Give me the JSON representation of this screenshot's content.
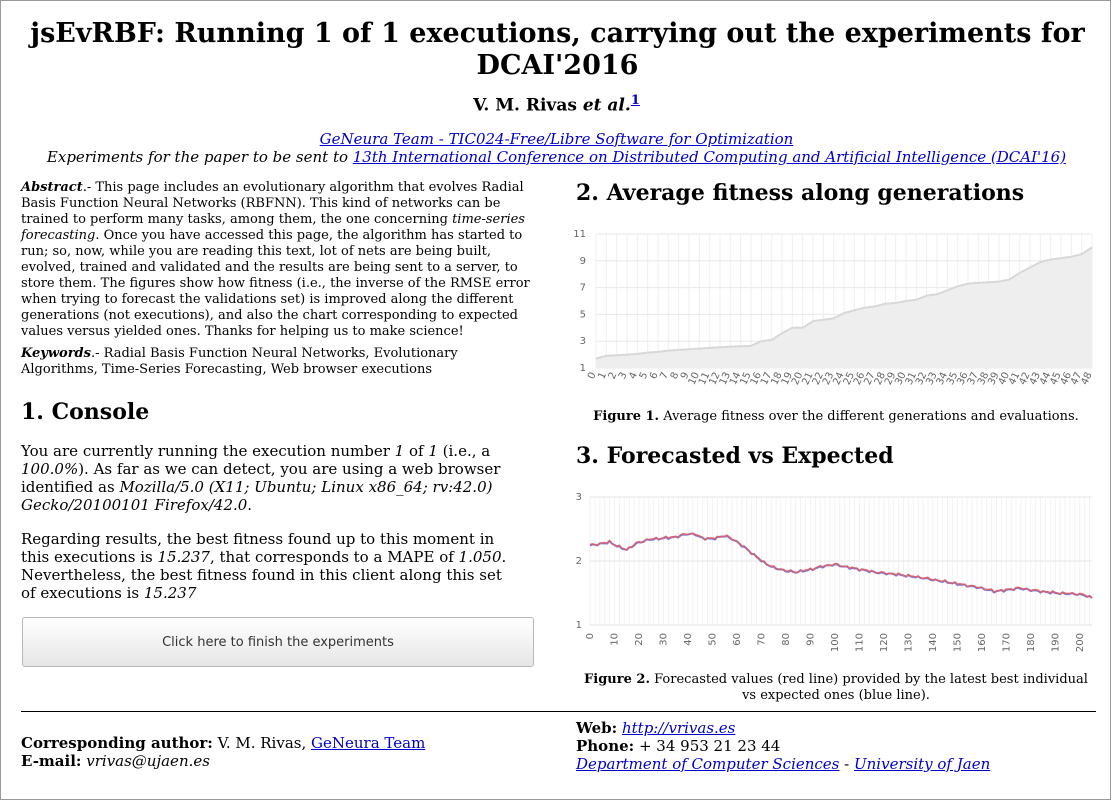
{
  "title": "jsEvRBF: Running 1 of 1 executions, carrying out the experiments for DCAI'2016",
  "authors": {
    "names": "V. M. Rivas",
    "etal": "et al.",
    "footnote": "1"
  },
  "team_link": "GeNeura Team - TIC024-Free/Libre Software for Optimization",
  "subtitle": {
    "prefix": "Experiments for the paper to be sent to ",
    "link": "13th International Conference on Distributed Computing and Artificial Intelligence (DCAI'16)"
  },
  "abstract": {
    "label": "Abstract",
    "part1": ".- This page includes an evolutionary algorithm that evolves Radial Basis Function Neural Networks (RBFNN). This kind of networks can be trained to perform many tasks, among them, the one concerning ",
    "emph": "time-series forecasting",
    "part2": ". Once you have accessed this page, the algorithm has started to run; so, now, while you are reading this text, lot of nets are being built, evolved, trained and validated and the results are being sent to a server, to store them. The figures show how fitness (i.e., the inverse of the RMSE error when trying to forecast the validations set) is improved along the different generations (not executions), and also the chart corresponding to expected values versus yielded ones. Thanks for helping us to make science!"
  },
  "keywords": {
    "label": "Keywords",
    "text": ".- Radial Basis Function Neural Networks, Evolutionary Algorithms, Time-Series Forecasting, Web browser executions"
  },
  "console": {
    "heading": "1. Console",
    "p1": {
      "t1": "You are currently running the execution number ",
      "num": "1",
      "t2": " of ",
      "total": "1",
      "t3": " (i.e., a ",
      "pct": "100.0%",
      "t4": "). As far as we can detect, you are using a web browser identified as ",
      "ua": "Mozilla/5.0 (X11; Ubuntu; Linux x86_64; rv:42.0) Gecko/20100101 Firefox/42.0",
      "t5": "."
    },
    "p2": {
      "t1": "Regarding results, the best fitness found up to this moment in this executions is ",
      "fit": "15.237",
      "t2": ", that corresponds to a MAPE of ",
      "mape": "1.050",
      "t3": ". Nevertheless, the best fitness found in this client along this set of executions is ",
      "fit2": "15.237"
    },
    "button": "Click here to finish the experiments"
  },
  "fitness": {
    "heading": "2. Average fitness along generations",
    "caption_label": "Figure 1.",
    "caption": " Average fitness over the different generations and evaluations."
  },
  "forecast": {
    "heading": "3. Forecasted vs Expected",
    "caption_label": "Figure 2.",
    "caption": " Forecasted values (red line) provided by the latest best individual vs expected ones (blue line)."
  },
  "footer": {
    "corr_label": "Corresponding author:",
    "corr_name": " V. M. Rivas, ",
    "corr_link": "GeNeura Team",
    "email_label": "E-mail:",
    "email": "vrivas@ujaen.es",
    "web_label": "Web:",
    "web": "http://vrivas.es",
    "phone_label": "Phone:",
    "phone": " + 34 953 21 23 44",
    "dept": "Department of Computer Sciences",
    "sep": " - ",
    "univ": "University of Jaen"
  },
  "chart_data": [
    {
      "type": "area",
      "ylim": [
        1,
        11
      ],
      "yticks": [
        1,
        3,
        5,
        7,
        9,
        11
      ],
      "x": [
        0,
        1,
        2,
        3,
        4,
        5,
        6,
        7,
        8,
        9,
        10,
        11,
        12,
        13,
        14,
        15,
        16,
        17,
        18,
        19,
        20,
        21,
        22,
        23,
        24,
        25,
        26,
        27,
        28,
        29,
        30,
        31,
        32,
        33,
        34,
        35,
        36,
        37,
        38,
        39,
        40,
        41,
        42,
        43,
        44,
        45,
        46,
        47,
        48
      ],
      "values": [
        1.7,
        1.9,
        1.95,
        2.0,
        2.05,
        2.15,
        2.2,
        2.3,
        2.35,
        2.4,
        2.45,
        2.5,
        2.55,
        2.6,
        2.62,
        2.65,
        3.0,
        3.1,
        3.6,
        4.0,
        4.0,
        4.5,
        4.6,
        4.7,
        5.1,
        5.3,
        5.5,
        5.6,
        5.8,
        5.85,
        6.0,
        6.1,
        6.4,
        6.5,
        6.8,
        7.1,
        7.3,
        7.35,
        7.4,
        7.45,
        7.6,
        8.1,
        8.5,
        8.9,
        9.1,
        9.2,
        9.3,
        9.5,
        10.0
      ],
      "fill": "#eeeeee",
      "stroke": "#d8d8d8"
    },
    {
      "type": "line",
      "ylim": [
        1,
        3
      ],
      "yticks": [
        1,
        2,
        3
      ],
      "xticks": [
        0,
        10,
        20,
        30,
        40,
        50,
        60,
        70,
        80,
        90,
        100,
        110,
        120,
        130,
        140,
        150,
        160,
        170,
        180,
        190,
        200
      ],
      "knots": [
        [
          0,
          2.25
        ],
        [
          4,
          2.27
        ],
        [
          8,
          2.3
        ],
        [
          12,
          2.22
        ],
        [
          15,
          2.18
        ],
        [
          19,
          2.28
        ],
        [
          24,
          2.34
        ],
        [
          30,
          2.36
        ],
        [
          35,
          2.38
        ],
        [
          40,
          2.43
        ],
        [
          43,
          2.42
        ],
        [
          46,
          2.36
        ],
        [
          50,
          2.35
        ],
        [
          55,
          2.4
        ],
        [
          59,
          2.33
        ],
        [
          63,
          2.22
        ],
        [
          67,
          2.1
        ],
        [
          71,
          1.98
        ],
        [
          75,
          1.9
        ],
        [
          80,
          1.85
        ],
        [
          84,
          1.83
        ],
        [
          90,
          1.87
        ],
        [
          95,
          1.92
        ],
        [
          100,
          1.95
        ],
        [
          106,
          1.9
        ],
        [
          112,
          1.86
        ],
        [
          118,
          1.82
        ],
        [
          124,
          1.8
        ],
        [
          130,
          1.77
        ],
        [
          136,
          1.74
        ],
        [
          142,
          1.7
        ],
        [
          148,
          1.66
        ],
        [
          154,
          1.62
        ],
        [
          160,
          1.58
        ],
        [
          165,
          1.53
        ],
        [
          170,
          1.55
        ],
        [
          175,
          1.58
        ],
        [
          180,
          1.55
        ],
        [
          186,
          1.52
        ],
        [
          192,
          1.5
        ],
        [
          198,
          1.49
        ],
        [
          202,
          1.47
        ],
        [
          205,
          1.43
        ]
      ],
      "series": [
        {
          "name": "forecasted",
          "color": "#e06060"
        },
        {
          "name": "expected",
          "color": "#6060e0"
        }
      ]
    }
  ]
}
